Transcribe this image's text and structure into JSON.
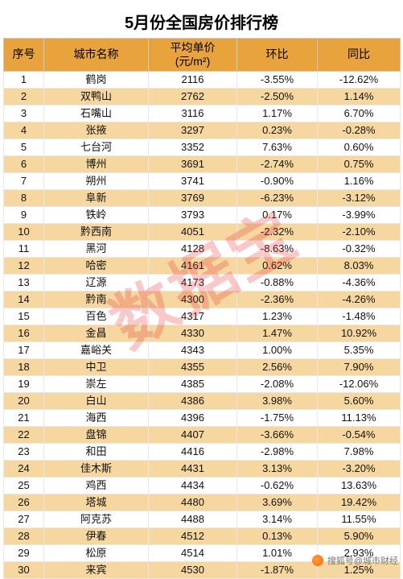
{
  "title": "5月份全国房价排行榜",
  "watermark": "数据宝",
  "footer": {
    "source_label": "搜狐号",
    "at": "@",
    "account": "城市财经"
  },
  "table": {
    "columns": {
      "idx": {
        "label": "序号",
        "width": 50
      },
      "city": {
        "label": "城市名称",
        "width": 130
      },
      "price": {
        "label": "平均单价\n(元/m²)",
        "width": 110
      },
      "mom": {
        "label": "环比",
        "width": 100
      },
      "yoy": {
        "label": "同比",
        "width": 103
      }
    },
    "header_bg": "#e8a33d",
    "row_bg_a": "#ffffff",
    "row_bg_b": "#f6d7a0",
    "font_size_header": 14,
    "font_size_cell": 13,
    "rows": [
      {
        "idx": 1,
        "city": "鹤岗",
        "price": 2116,
        "mom": "-3.55%",
        "yoy": "-12.62%"
      },
      {
        "idx": 2,
        "city": "双鸭山",
        "price": 2762,
        "mom": "-2.50%",
        "yoy": "1.14%"
      },
      {
        "idx": 3,
        "city": "石嘴山",
        "price": 3116,
        "mom": "1.17%",
        "yoy": "6.70%"
      },
      {
        "idx": 4,
        "city": "张掖",
        "price": 3297,
        "mom": "0.23%",
        "yoy": "-0.28%"
      },
      {
        "idx": 5,
        "city": "七台河",
        "price": 3352,
        "mom": "7.63%",
        "yoy": "0.60%"
      },
      {
        "idx": 6,
        "city": "博州",
        "price": 3691,
        "mom": "-2.74%",
        "yoy": "0.75%"
      },
      {
        "idx": 7,
        "city": "朔州",
        "price": 3741,
        "mom": "-0.90%",
        "yoy": "1.16%"
      },
      {
        "idx": 8,
        "city": "阜新",
        "price": 3769,
        "mom": "-6.23%",
        "yoy": "-3.12%"
      },
      {
        "idx": 9,
        "city": "铁岭",
        "price": 3793,
        "mom": "0.17%",
        "yoy": "-3.99%"
      },
      {
        "idx": 10,
        "city": "黔西南",
        "price": 4051,
        "mom": "-2.32%",
        "yoy": "-2.10%"
      },
      {
        "idx": 11,
        "city": "黑河",
        "price": 4128,
        "mom": "-8.63%",
        "yoy": "-0.32%"
      },
      {
        "idx": 12,
        "city": "哈密",
        "price": 4161,
        "mom": "0.62%",
        "yoy": "8.03%"
      },
      {
        "idx": 13,
        "city": "辽源",
        "price": 4173,
        "mom": "-0.88%",
        "yoy": "-4.36%"
      },
      {
        "idx": 14,
        "city": "黔南",
        "price": 4300,
        "mom": "-2.36%",
        "yoy": "-4.26%"
      },
      {
        "idx": 15,
        "city": "百色",
        "price": 4317,
        "mom": "1.23%",
        "yoy": "-1.48%"
      },
      {
        "idx": 16,
        "city": "金昌",
        "price": 4330,
        "mom": "1.47%",
        "yoy": "10.92%"
      },
      {
        "idx": 17,
        "city": "嘉峪关",
        "price": 4343,
        "mom": "1.00%",
        "yoy": "5.35%"
      },
      {
        "idx": 18,
        "city": "中卫",
        "price": 4355,
        "mom": "2.56%",
        "yoy": "7.90%"
      },
      {
        "idx": 19,
        "city": "崇左",
        "price": 4385,
        "mom": "-2.08%",
        "yoy": "-12.06%"
      },
      {
        "idx": 20,
        "city": "白山",
        "price": 4386,
        "mom": "3.98%",
        "yoy": "5.60%"
      },
      {
        "idx": 21,
        "city": "海西",
        "price": 4396,
        "mom": "-1.75%",
        "yoy": "11.13%"
      },
      {
        "idx": 22,
        "city": "盘锦",
        "price": 4407,
        "mom": "-3.66%",
        "yoy": "-0.54%"
      },
      {
        "idx": 23,
        "city": "和田",
        "price": 4416,
        "mom": "-2.98%",
        "yoy": "7.98%"
      },
      {
        "idx": 24,
        "city": "佳木斯",
        "price": 4431,
        "mom": "3.13%",
        "yoy": "-3.20%"
      },
      {
        "idx": 25,
        "city": "鸡西",
        "price": 4434,
        "mom": "-0.62%",
        "yoy": "13.63%"
      },
      {
        "idx": 26,
        "city": "塔城",
        "price": 4480,
        "mom": "3.69%",
        "yoy": "19.42%"
      },
      {
        "idx": 27,
        "city": "阿克苏",
        "price": 4488,
        "mom": "3.14%",
        "yoy": "11.55%"
      },
      {
        "idx": 28,
        "city": "伊春",
        "price": 4512,
        "mom": "0.13%",
        "yoy": "5.90%"
      },
      {
        "idx": 29,
        "city": "松原",
        "price": 4514,
        "mom": "1.01%",
        "yoy": "2.93%"
      },
      {
        "idx": 30,
        "city": "来宾",
        "price": 4530,
        "mom": "-1.87%",
        "yoy": "1.25%"
      }
    ]
  }
}
